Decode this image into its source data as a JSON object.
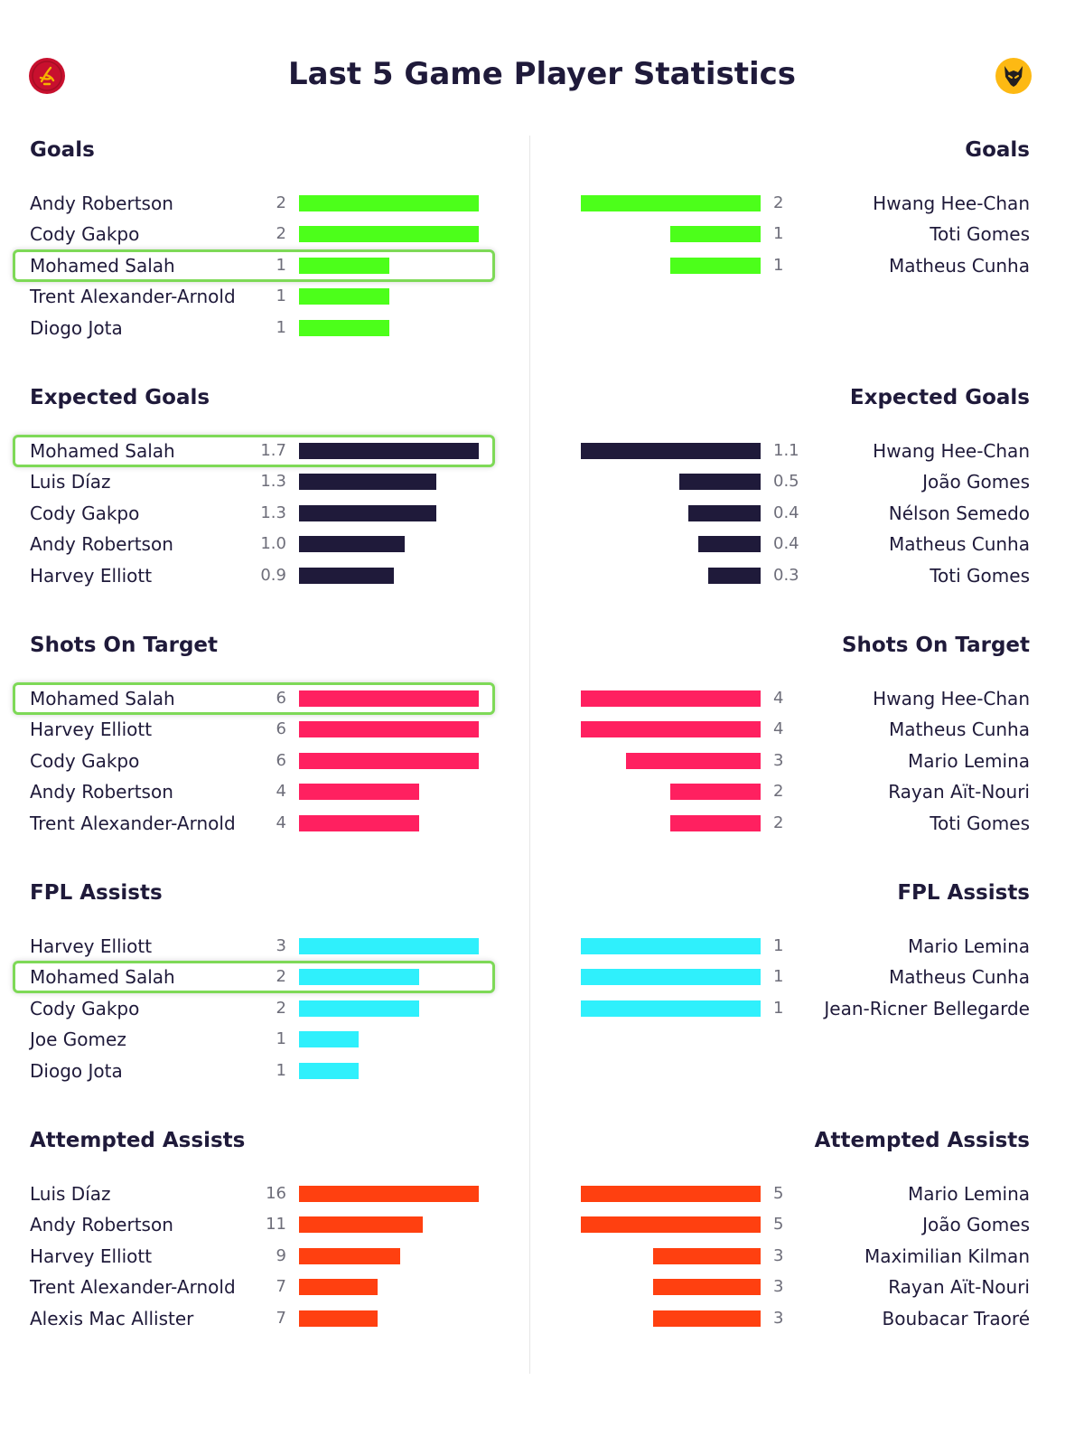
{
  "title": "Last 5 Game Player Statistics",
  "teams": {
    "left": {
      "badge_icon": "liverpool-liver-bird-badge",
      "badge_color": "#c8102e",
      "badge_accent": "#f6b300"
    },
    "right": {
      "badge_icon": "wolves-wolf-head-badge",
      "badge_color": "#fdb913",
      "badge_accent": "#231f20"
    }
  },
  "highlight_color": "#7ed957",
  "chart_data": [
    {
      "type": "bar",
      "title": "Goals",
      "color": "#4cff1a",
      "left": {
        "max": 2,
        "rows": [
          {
            "name": "Andy Robertson",
            "value": 2,
            "label": "2"
          },
          {
            "name": "Cody Gakpo",
            "value": 2,
            "label": "2"
          },
          {
            "name": "Mohamed Salah",
            "value": 1,
            "label": "1",
            "highlight": true
          },
          {
            "name": "Trent Alexander-Arnold",
            "value": 1,
            "label": "1"
          },
          {
            "name": "Diogo Jota",
            "value": 1,
            "label": "1"
          }
        ]
      },
      "right": {
        "max": 2,
        "rows": [
          {
            "name": "Hwang Hee-Chan",
            "value": 2,
            "label": "2"
          },
          {
            "name": "Toti Gomes",
            "value": 1,
            "label": "1"
          },
          {
            "name": "Matheus Cunha",
            "value": 1,
            "label": "1"
          }
        ]
      }
    },
    {
      "type": "bar",
      "title": "Expected Goals",
      "color": "#1f1a3a",
      "left": {
        "max": 1.7,
        "rows": [
          {
            "name": "Mohamed Salah",
            "value": 1.7,
            "label": "1.7",
            "highlight": true
          },
          {
            "name": "Luis Díaz",
            "value": 1.3,
            "label": "1.3"
          },
          {
            "name": "Cody Gakpo",
            "value": 1.3,
            "label": "1.3"
          },
          {
            "name": "Andy Robertson",
            "value": 1.0,
            "label": "1.0"
          },
          {
            "name": "Harvey Elliott",
            "value": 0.9,
            "label": "0.9"
          }
        ]
      },
      "right": {
        "max": 1.1,
        "rows": [
          {
            "name": "Hwang Hee-Chan",
            "value": 1.1,
            "label": "1.1"
          },
          {
            "name": "João Gomes",
            "value": 0.5,
            "label": "0.5"
          },
          {
            "name": "Nélson Semedo",
            "value": 0.44,
            "label": "0.4"
          },
          {
            "name": "Matheus Cunha",
            "value": 0.38,
            "label": "0.4"
          },
          {
            "name": "Toti Gomes",
            "value": 0.32,
            "label": "0.3"
          }
        ]
      }
    },
    {
      "type": "bar",
      "title": "Shots On Target",
      "color": "#ff2060",
      "left": {
        "max": 6,
        "rows": [
          {
            "name": "Mohamed Salah",
            "value": 6,
            "label": "6",
            "highlight": true
          },
          {
            "name": "Harvey Elliott",
            "value": 6,
            "label": "6"
          },
          {
            "name": "Cody Gakpo",
            "value": 6,
            "label": "6"
          },
          {
            "name": "Andy Robertson",
            "value": 4,
            "label": "4"
          },
          {
            "name": "Trent Alexander-Arnold",
            "value": 4,
            "label": "4"
          }
        ]
      },
      "right": {
        "max": 4,
        "rows": [
          {
            "name": "Hwang Hee-Chan",
            "value": 4,
            "label": "4"
          },
          {
            "name": "Matheus Cunha",
            "value": 4,
            "label": "4"
          },
          {
            "name": "Mario Lemina",
            "value": 3,
            "label": "3"
          },
          {
            "name": "Rayan Aït-Nouri",
            "value": 2,
            "label": "2"
          },
          {
            "name": "Toti Gomes",
            "value": 2,
            "label": "2"
          }
        ]
      }
    },
    {
      "type": "bar",
      "title": "FPL Assists",
      "color": "#2ff0fc",
      "left": {
        "max": 3,
        "rows": [
          {
            "name": "Harvey Elliott",
            "value": 3,
            "label": "3"
          },
          {
            "name": "Mohamed Salah",
            "value": 2,
            "label": "2",
            "highlight": true
          },
          {
            "name": "Cody Gakpo",
            "value": 2,
            "label": "2"
          },
          {
            "name": "Joe Gomez",
            "value": 1,
            "label": "1"
          },
          {
            "name": "Diogo Jota",
            "value": 1,
            "label": "1"
          }
        ]
      },
      "right": {
        "max": 1,
        "rows": [
          {
            "name": "Mario Lemina",
            "value": 1,
            "label": "1"
          },
          {
            "name": "Matheus Cunha",
            "value": 1,
            "label": "1"
          },
          {
            "name": "Jean-Ricner Bellegarde",
            "value": 1,
            "label": "1"
          }
        ]
      }
    },
    {
      "type": "bar",
      "title": "Attempted Assists",
      "color": "#ff4010",
      "left": {
        "max": 16,
        "rows": [
          {
            "name": "Luis Díaz",
            "value": 16,
            "label": "16"
          },
          {
            "name": "Andy Robertson",
            "value": 11,
            "label": "11"
          },
          {
            "name": "Harvey Elliott",
            "value": 9,
            "label": "9"
          },
          {
            "name": "Trent Alexander-Arnold",
            "value": 7,
            "label": "7"
          },
          {
            "name": "Alexis Mac Allister",
            "value": 7,
            "label": "7"
          }
        ]
      },
      "right": {
        "max": 5,
        "rows": [
          {
            "name": "Mario Lemina",
            "value": 5,
            "label": "5"
          },
          {
            "name": "João Gomes",
            "value": 5,
            "label": "5"
          },
          {
            "name": "Maximilian Kilman",
            "value": 3,
            "label": "3"
          },
          {
            "name": "Rayan Aït-Nouri",
            "value": 3,
            "label": "3"
          },
          {
            "name": "Boubacar Traoré",
            "value": 3,
            "label": "3"
          }
        ]
      }
    }
  ]
}
